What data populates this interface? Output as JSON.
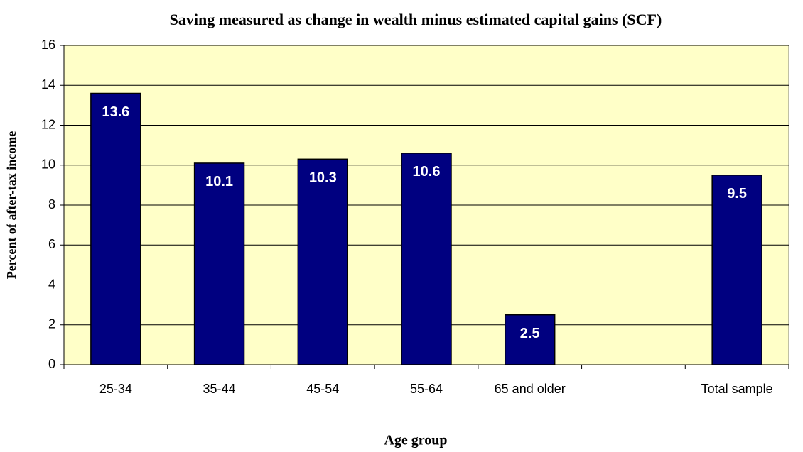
{
  "chart_data": {
    "type": "bar",
    "title": "Saving measured as change in wealth minus estimated capital gains (SCF)",
    "x_label": "Age group",
    "y_label": "Percent of after-tax income",
    "categories": [
      "25-34",
      "35-44",
      "45-54",
      "55-64",
      "65 and older",
      null,
      "Total sample"
    ],
    "values": [
      13.6,
      10.1,
      10.3,
      10.6,
      2.5,
      null,
      9.5
    ],
    "color": "#000080",
    "ylim": [
      0,
      16
    ],
    "yticks": [
      0,
      2,
      4,
      6,
      8,
      10,
      12,
      14,
      16
    ],
    "grid": true
  }
}
